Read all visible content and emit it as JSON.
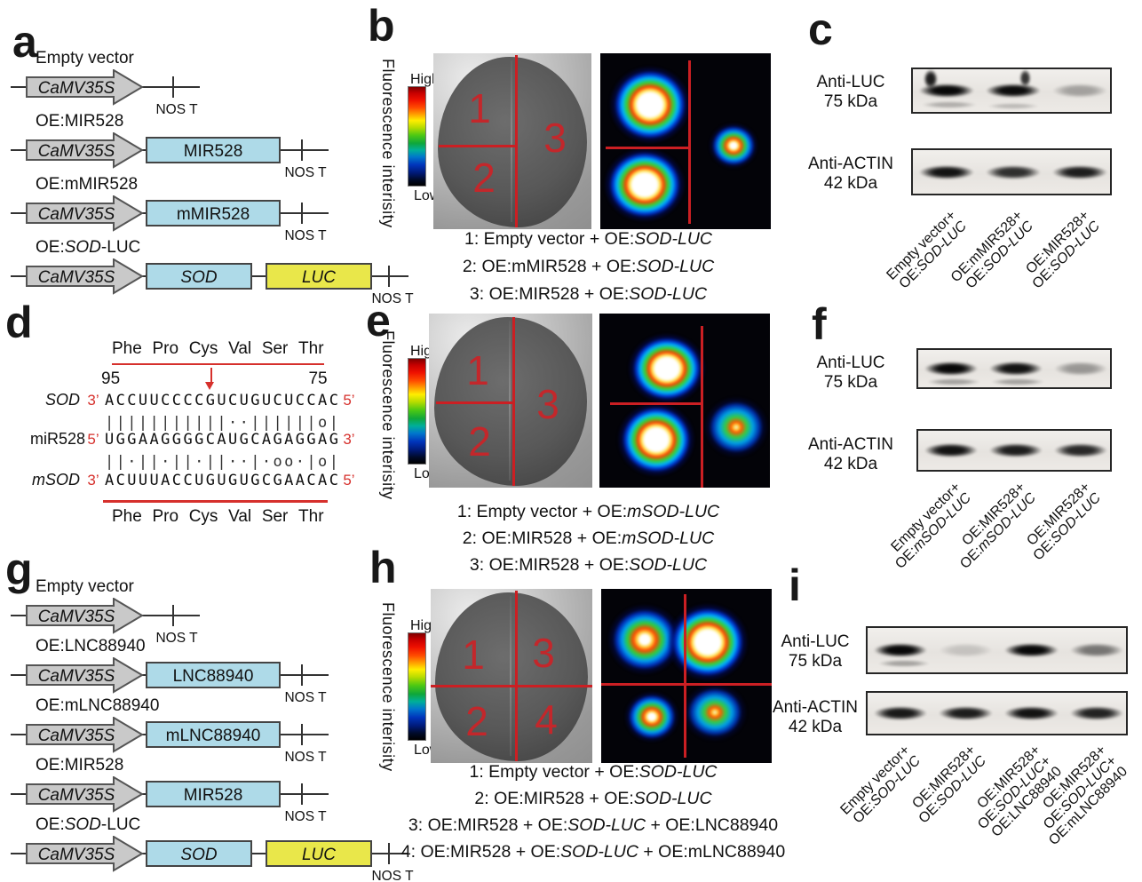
{
  "colors": {
    "box_blue": "#aedae8",
    "box_yellow": "#e9e74a",
    "promoter_gray": "#c9c9c9",
    "red_line": "#cb1f23",
    "alignment_red": "#d6302c"
  },
  "panels": {
    "a": {
      "letter": "a",
      "constructs": [
        {
          "id": "empty-vector",
          "name": [
            {
              "t": "Empty vector"
            }
          ],
          "promoter": "CaMV35S",
          "boxes": [],
          "terminator": "NOS T"
        },
        {
          "id": "oe-mir528",
          "name": [
            {
              "t": "OE:MIR528"
            }
          ],
          "promoter": "CaMV35S",
          "boxes": [
            {
              "label": "MIR528",
              "color": "blue",
              "italic": false
            }
          ],
          "terminator": "NOS T"
        },
        {
          "id": "oe-mmir528",
          "name": [
            {
              "t": "OE:mMIR528"
            }
          ],
          "promoter": "CaMV35S",
          "boxes": [
            {
              "label": "mMIR528",
              "color": "blue",
              "italic": false
            }
          ],
          "terminator": "NOS T"
        },
        {
          "id": "oe-sod-luc",
          "name": [
            {
              "t": "OE:"
            },
            {
              "t": "SOD",
              "i": true
            },
            {
              "t": "-LUC"
            }
          ],
          "promoter": "CaMV35S",
          "boxes": [
            {
              "label": "SOD",
              "color": "blue",
              "italic": true
            },
            {
              "label": "LUC",
              "color": "yellow",
              "italic": true
            }
          ],
          "terminator": "NOS T"
        }
      ]
    },
    "b": {
      "letter": "b",
      "colorbar": {
        "axis_label": "Fluorescence interisity",
        "high": "High",
        "low": "Low"
      },
      "regions": [
        "1",
        "2",
        "3"
      ],
      "caption": [
        [
          {
            "t": "1: Empty vector + OE:"
          },
          {
            "t": "SOD-LUC",
            "i": true
          }
        ],
        [
          {
            "t": "2: OE:mMIR528 + OE:"
          },
          {
            "t": "SOD-LUC",
            "i": true
          }
        ],
        [
          {
            "t": "3: OE:MIR528 + OE:"
          },
          {
            "t": "SOD-LUC",
            "i": true
          }
        ]
      ]
    },
    "c": {
      "letter": "c",
      "blots": [
        {
          "antibody": "Anti-LUC",
          "size": "75 kDa",
          "band_intensities": [
            1,
            0.98,
            0.3
          ]
        },
        {
          "antibody": "Anti-ACTIN",
          "size": "42 kDa",
          "band_intensities": [
            0.95,
            0.82,
            0.9
          ]
        }
      ],
      "lanes": [
        [
          [
            {
              "t": "Empty vector+"
            }
          ],
          [
            {
              "t": "OE:"
            },
            {
              "t": "SOD-LUC",
              "i": true
            }
          ]
        ],
        [
          [
            {
              "t": "OE:mMIR528+"
            }
          ],
          [
            {
              "t": "OE:"
            },
            {
              "t": "SOD-LUC",
              "i": true
            }
          ]
        ],
        [
          [
            {
              "t": "OE:MIR528+"
            }
          ],
          [
            {
              "t": "OE:"
            },
            {
              "t": "SOD-LUC",
              "i": true
            }
          ]
        ]
      ]
    },
    "d": {
      "letter": "d",
      "aa_top": [
        "Phe",
        "Pro",
        "Cys",
        "Val",
        "Ser",
        "Thr"
      ],
      "aa_bottom": [
        "Phe",
        "Pro",
        "Cys",
        "Val",
        "Ser",
        "Thr"
      ],
      "pos_left": "95",
      "pos_right": "75",
      "rows": [
        {
          "name": "SOD",
          "italic": true,
          "p5": "3’",
          "seq": "ACCUUCCCCGUCUGUCUCCAC",
          "p3": "5’"
        },
        {
          "match": "|||||||||||··||||||o|"
        },
        {
          "name": "miR528",
          "italic": false,
          "p5": "5’",
          "seq": "UGGAAGGGGCAUGCAGAGGAG",
          "p3": "3’"
        },
        {
          "match": "||·||·||·||··|·oo·|o|"
        },
        {
          "name": "mSOD",
          "italic": true,
          "p5": "3’",
          "seq": "ACUUUACCUGUGUGCGAACAC",
          "p3": "5’"
        }
      ],
      "arrow_index": 9
    },
    "e": {
      "letter": "e",
      "colorbar": {
        "axis_label": "Fluorescence interisity",
        "high": "High",
        "low": "Low"
      },
      "regions": [
        "1",
        "2",
        "3"
      ],
      "caption": [
        [
          {
            "t": "1: Empty vector + OE:"
          },
          {
            "t": "mSOD-LUC",
            "i": true
          }
        ],
        [
          {
            "t": "2: OE:MIR528 + OE:"
          },
          {
            "t": "mSOD-LUC",
            "i": true
          }
        ],
        [
          {
            "t": "3: OE:MIR528 + OE:"
          },
          {
            "t": "SOD-LUC",
            "i": true
          }
        ]
      ]
    },
    "f": {
      "letter": "f",
      "blots": [
        {
          "antibody": "Anti-LUC",
          "size": "75 kDa",
          "band_intensities": [
            1,
            0.95,
            0.35
          ]
        },
        {
          "antibody": "Anti-ACTIN",
          "size": "42 kDa",
          "band_intensities": [
            0.95,
            0.9,
            0.85
          ]
        }
      ],
      "lanes": [
        [
          [
            {
              "t": "Empty vector+"
            }
          ],
          [
            {
              "t": "OE:"
            },
            {
              "t": "mSOD-LUC",
              "i": true
            }
          ]
        ],
        [
          [
            {
              "t": "OE:MIR528+"
            }
          ],
          [
            {
              "t": "OE:"
            },
            {
              "t": "mSOD-LUC",
              "i": true
            }
          ]
        ],
        [
          [
            {
              "t": "OE:MIR528+"
            }
          ],
          [
            {
              "t": "OE:"
            },
            {
              "t": "SOD-LUC",
              "i": true
            }
          ]
        ]
      ]
    },
    "g": {
      "letter": "g",
      "constructs": [
        {
          "id": "empty-vector",
          "name": [
            {
              "t": "Empty vector"
            }
          ],
          "promoter": "CaMV35S",
          "boxes": [],
          "terminator": "NOS T"
        },
        {
          "id": "oe-lnc88940",
          "name": [
            {
              "t": "OE:LNC88940"
            }
          ],
          "promoter": "CaMV35S",
          "boxes": [
            {
              "label": "LNC88940",
              "color": "blue",
              "italic": false
            }
          ],
          "terminator": "NOS T"
        },
        {
          "id": "oe-mlnc88940",
          "name": [
            {
              "t": "OE:mLNC88940"
            }
          ],
          "promoter": "CaMV35S",
          "boxes": [
            {
              "label": "mLNC88940",
              "color": "blue",
              "italic": false
            }
          ],
          "terminator": "NOS T"
        },
        {
          "id": "oe-mir528",
          "name": [
            {
              "t": "OE:MIR528"
            }
          ],
          "promoter": "CaMV35S",
          "boxes": [
            {
              "label": "MIR528",
              "color": "blue",
              "italic": false
            }
          ],
          "terminator": "NOS T"
        },
        {
          "id": "oe-sod-luc",
          "name": [
            {
              "t": "OE:"
            },
            {
              "t": "SOD",
              "i": true
            },
            {
              "t": "-LUC"
            }
          ],
          "promoter": "CaMV35S",
          "boxes": [
            {
              "label": "SOD",
              "color": "blue",
              "italic": true
            },
            {
              "label": "LUC",
              "color": "yellow",
              "italic": true
            }
          ],
          "terminator": "NOS T"
        }
      ]
    },
    "h": {
      "letter": "h",
      "colorbar": {
        "axis_label": "Fluorescence interisity",
        "high": "High",
        "low": "Low"
      },
      "regions": [
        "1",
        "2",
        "3",
        "4"
      ],
      "caption": [
        [
          {
            "t": "1: Empty vector + OE:"
          },
          {
            "t": "SOD-LUC",
            "i": true
          }
        ],
        [
          {
            "t": "2: OE:MIR528 + OE:"
          },
          {
            "t": "SOD-LUC",
            "i": true
          }
        ],
        [
          {
            "t": "3: OE:MIR528 + OE:"
          },
          {
            "t": "SOD-LUC",
            "i": true
          },
          {
            "t": " + OE:LNC88940"
          }
        ],
        [
          {
            "t": "4: OE:MIR528 + OE:"
          },
          {
            "t": "SOD-LUC",
            "i": true
          },
          {
            "t": " + OE:mLNC88940"
          }
        ]
      ]
    },
    "i": {
      "letter": "i",
      "blots": [
        {
          "antibody": "Anti-LUC",
          "size": "75 kDa",
          "band_intensities": [
            1,
            0.15,
            1,
            0.5
          ]
        },
        {
          "antibody": "Anti-ACTIN",
          "size": "42 kDa",
          "band_intensities": [
            0.92,
            0.9,
            0.95,
            0.88
          ]
        }
      ],
      "lanes": [
        [
          [
            {
              "t": "Empty vector+"
            }
          ],
          [
            {
              "t": "OE:"
            },
            {
              "t": "SOD-LUC",
              "i": true
            }
          ]
        ],
        [
          [
            {
              "t": "OE:MIR528+"
            }
          ],
          [
            {
              "t": "OE:"
            },
            {
              "t": "SOD-LUC",
              "i": true
            }
          ]
        ],
        [
          [
            {
              "t": "OE:MIR528+"
            }
          ],
          [
            {
              "t": "OE:"
            },
            {
              "t": "SOD-LUC",
              "i": true
            },
            {
              "t": "+"
            }
          ],
          [
            {
              "t": "OE:LNC88940"
            }
          ]
        ],
        [
          [
            {
              "t": "OE:MIR528+"
            }
          ],
          [
            {
              "t": "OE:"
            },
            {
              "t": "SOD-LUC",
              "i": true
            },
            {
              "t": "+"
            }
          ],
          [
            {
              "t": "OE:mLNC88940"
            }
          ]
        ]
      ]
    }
  }
}
